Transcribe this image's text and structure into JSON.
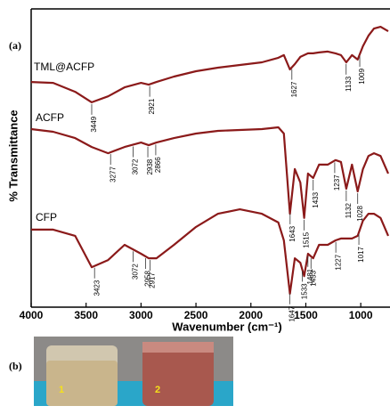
{
  "chart_data": {
    "type": "line",
    "panel_label": "(a)",
    "xlabel": "Wavenumber (cm⁻¹)",
    "ylabel": "% Transmittance",
    "xlim": [
      4000,
      750
    ],
    "ylim": [
      0,
      100
    ],
    "xticks": [
      4000,
      3500,
      3000,
      2500,
      2000,
      1500,
      1000
    ],
    "x": [
      4000,
      3800,
      3600,
      3449,
      3300,
      3150,
      3000,
      2930,
      2860,
      2700,
      2500,
      2300,
      2100,
      1900,
      1750,
      1700,
      1645,
      1600,
      1550,
      1515,
      1480,
      1433,
      1380,
      1300,
      1230,
      1180,
      1132,
      1080,
      1028,
      980,
      930,
      880,
      820,
      750
    ],
    "series": [
      {
        "name": "TML@ACFP",
        "color": "#8b1a1a",
        "values": [
          75.5,
          75.2,
          72.2,
          68.7,
          70.7,
          73.7,
          75.2,
          74.6,
          75.5,
          77.3,
          79.1,
          80.3,
          81.2,
          82.1,
          83.6,
          84.5,
          79.7,
          81.5,
          83.9,
          84.5,
          85.1,
          85.1,
          85.4,
          85.7,
          85.1,
          84.5,
          82.1,
          84.5,
          83.0,
          87.5,
          91.0,
          93.4,
          94.0,
          92.5
        ],
        "peaks": [
          3449,
          2921,
          1627,
          1133,
          1009
        ]
      },
      {
        "name": "ACFP",
        "color": "#8b1a1a",
        "values": [
          59.7,
          58.8,
          56.7,
          53.7,
          51.6,
          53.7,
          55.2,
          54.3,
          55.2,
          56.7,
          58.2,
          59.1,
          59.4,
          59.7,
          60.3,
          58.2,
          31.3,
          46.3,
          41.8,
          29.9,
          44.8,
          43.3,
          47.8,
          47.8,
          49.3,
          48.7,
          39.7,
          47.8,
          38.8,
          46.3,
          50.7,
          51.6,
          50.7,
          44.8
        ],
        "peaks": [
          3277,
          3072,
          2938,
          2866,
          1643,
          1515,
          1433,
          1237,
          1132,
          1028
        ]
      },
      {
        "name": "CFP",
        "color": "#8b1a1a",
        "values": [
          26.0,
          26.0,
          23.9,
          13.4,
          15.8,
          20.9,
          17.9,
          16.4,
          16.4,
          20.9,
          26.9,
          31.3,
          32.8,
          31.3,
          28.4,
          22.4,
          4.5,
          16.4,
          14.9,
          10.4,
          17.9,
          16.4,
          20.9,
          20.9,
          22.4,
          23.0,
          23.0,
          23.0,
          23.9,
          29.0,
          31.3,
          31.3,
          29.9,
          23.9
        ],
        "peaks": [
          3423,
          3072,
          2958,
          2917,
          1647,
          1533,
          1481,
          1453,
          1227,
          1017
        ]
      }
    ]
  },
  "photo": {
    "panel_label": "(b)",
    "labels": [
      "1",
      "2"
    ]
  }
}
